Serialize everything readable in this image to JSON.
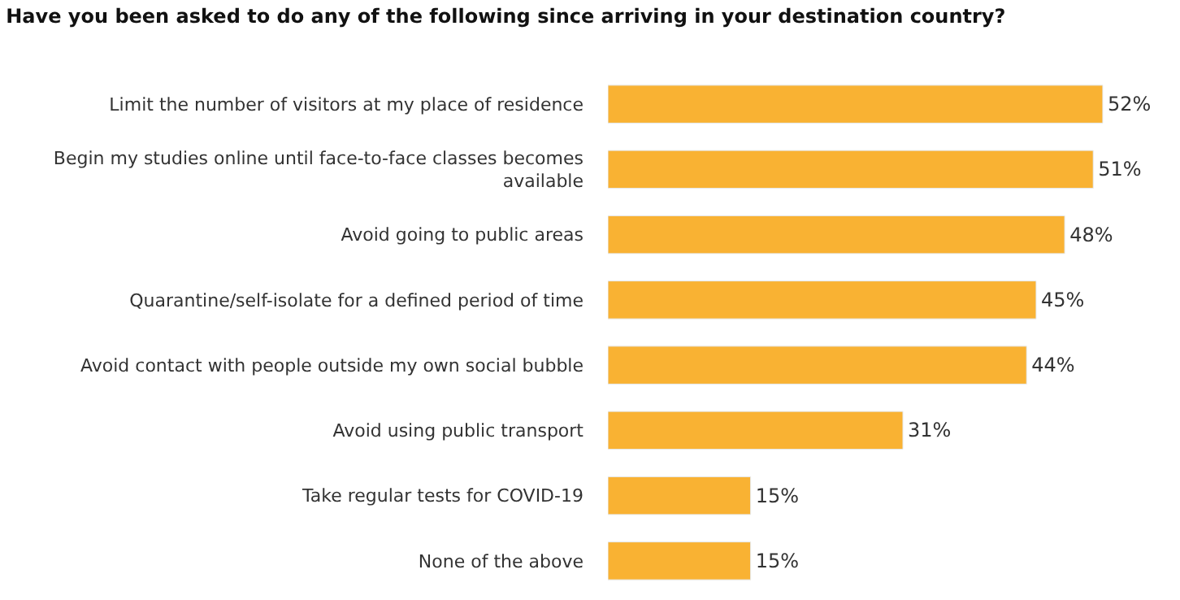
{
  "chart_data": {
    "type": "bar",
    "orientation": "horizontal",
    "title": "Have you been asked to do any of the following since arriving in your destination country?",
    "categories": [
      "Limit the number of visitors at my place of residence",
      "Begin my studies online until face-to-face classes becomes available",
      "Avoid going to public areas",
      "Quarantine/self-isolate for a defined period of time",
      "Avoid contact with people outside my own social bubble",
      "Avoid using public transport",
      "Take regular tests for COVID-19",
      "None of the above"
    ],
    "values": [
      52,
      51,
      48,
      45,
      44,
      31,
      15,
      15
    ],
    "value_labels": [
      "52%",
      "51%",
      "48%",
      "45%",
      "44%",
      "31%",
      "15%",
      "15%"
    ],
    "color": "#f9b233"
  }
}
